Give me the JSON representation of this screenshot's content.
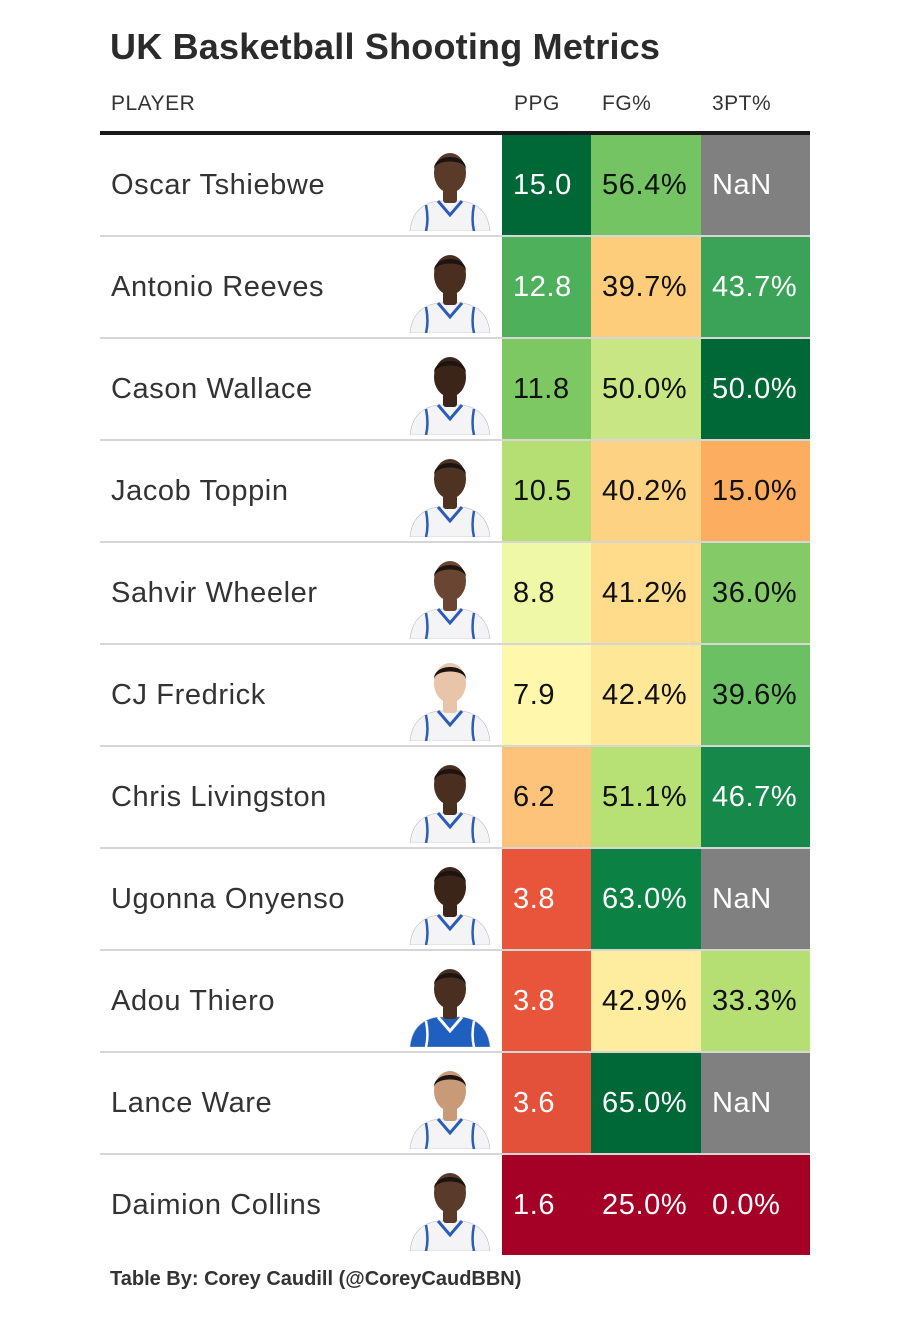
{
  "chart_data": {
    "type": "table",
    "title": "UK Basketball Shooting Metrics",
    "columns": [
      "PLAYER",
      "PPG",
      "FG%",
      "3PT%"
    ],
    "rows": [
      {
        "player": "Oscar Tshiebwe",
        "ppg": "15.0",
        "fg": "56.4%",
        "tpt": "NaN",
        "ppg_color": "#006837",
        "fg_color": "#74c464",
        "tpt_color": "#808080",
        "jersey": "white"
      },
      {
        "player": "Antonio Reeves",
        "ppg": "12.8",
        "fg": "39.7%",
        "tpt": "43.7%",
        "ppg_color": "#4eb05a",
        "fg_color": "#fdcd7c",
        "tpt_color": "#3aa357",
        "jersey": "white"
      },
      {
        "player": "Cason Wallace",
        "ppg": "11.8",
        "fg": "50.0%",
        "tpt": "50.0%",
        "ppg_color": "#7ec864",
        "fg_color": "#c8e784",
        "tpt_color": "#006837",
        "jersey": "white"
      },
      {
        "player": "Jacob Toppin",
        "ppg": "10.5",
        "fg": "40.2%",
        "tpt": "15.0%",
        "ppg_color": "#b5df73",
        "fg_color": "#fed283",
        "tpt_color": "#fdad60",
        "jersey": "white"
      },
      {
        "player": "Sahvir Wheeler",
        "ppg": "8.8",
        "fg": "41.2%",
        "tpt": "36.0%",
        "ppg_color": "#eef8a6",
        "fg_color": "#fedc8c",
        "tpt_color": "#84ca66",
        "jersey": "white"
      },
      {
        "player": "CJ Fredrick",
        "ppg": "7.9",
        "fg": "42.4%",
        "tpt": "39.6%",
        "ppg_color": "#fff7ab",
        "fg_color": "#fee797",
        "tpt_color": "#6cc064",
        "jersey": "white"
      },
      {
        "player": "Chris Livingston",
        "ppg": "6.2",
        "fg": "51.1%",
        "tpt": "46.7%",
        "ppg_color": "#fdc37a",
        "fg_color": "#b7e075",
        "tpt_color": "#15884a",
        "jersey": "white"
      },
      {
        "player": "Ugonna Onyenso",
        "ppg": "3.8",
        "fg": "63.0%",
        "tpt": "NaN",
        "ppg_color": "#e8553a",
        "fg_color": "#0c8144",
        "tpt_color": "#808080",
        "jersey": "white"
      },
      {
        "player": "Adou Thiero",
        "ppg": "3.8",
        "fg": "42.9%",
        "tpt": "33.3%",
        "ppg_color": "#e8553a",
        "fg_color": "#feec9f",
        "tpt_color": "#b5df73",
        "jersey": "blue"
      },
      {
        "player": "Lance Ware",
        "ppg": "3.6",
        "fg": "65.0%",
        "tpt": "NaN",
        "ppg_color": "#e4513a",
        "fg_color": "#006837",
        "tpt_color": "#808080",
        "jersey": "white"
      },
      {
        "player": "Daimion Collins",
        "ppg": "1.6",
        "fg": "25.0%",
        "tpt": "0.0%",
        "ppg_color": "#a50026",
        "fg_color": "#a50026",
        "tpt_color": "#a50026",
        "jersey": "white"
      }
    ],
    "missing_value_color": "#808080",
    "colormap": "RdYlGn"
  },
  "footer": "Table By: Corey Caudill (@CoreyCaudBBN)"
}
